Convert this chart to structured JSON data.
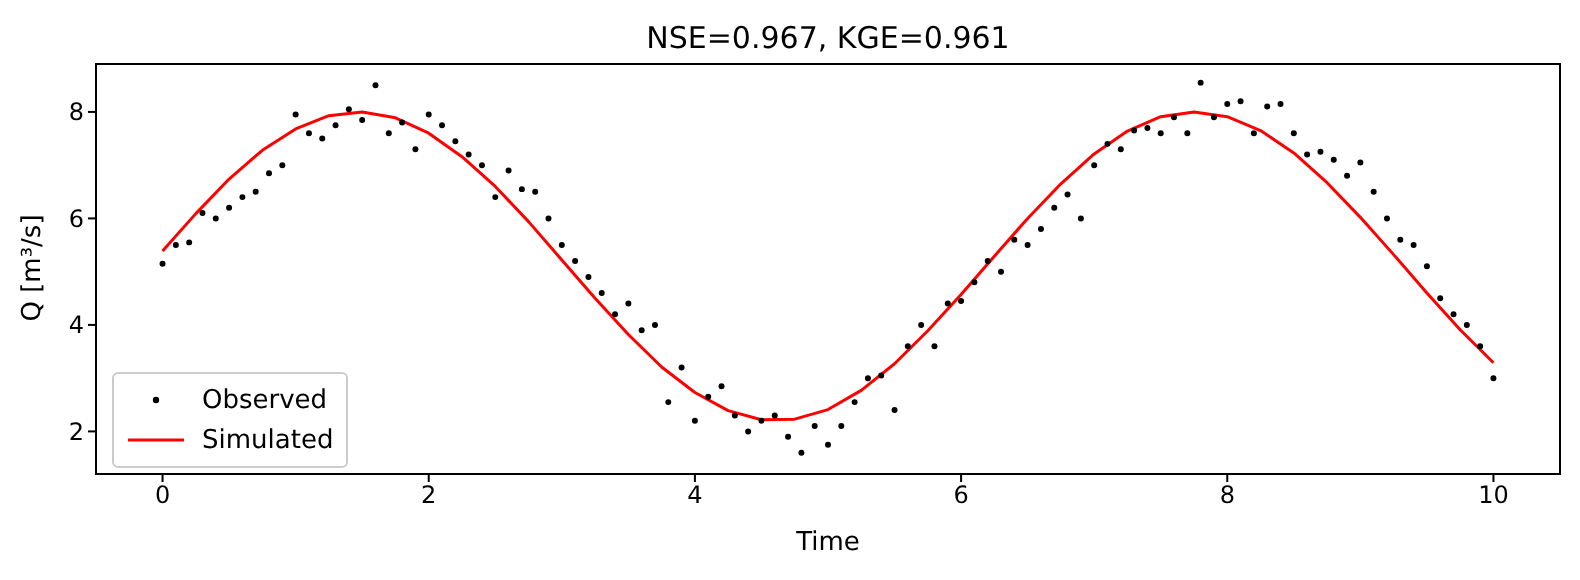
{
  "chart_data": {
    "type": "line",
    "title": "NSE=0.967, KGE=0.961",
    "xlabel": "Time",
    "ylabel": "Q [m³/s]",
    "xlim": [
      -0.5,
      10.5
    ],
    "xticks": [
      0,
      2,
      4,
      6,
      8,
      10
    ],
    "ylim": [
      1.2,
      8.9
    ],
    "yticks": [
      2,
      4,
      6,
      8
    ],
    "grid": false,
    "legend": "bottom left",
    "series": [
      {
        "name": "Observed",
        "type": "scatter",
        "marker": "circle",
        "color": "#000000",
        "x": [
          0,
          0.1,
          0.2,
          0.3,
          0.4,
          0.5,
          0.6,
          0.7,
          0.8,
          0.9,
          1.0,
          1.1,
          1.2,
          1.3,
          1.4,
          1.5,
          1.6,
          1.7,
          1.8,
          1.9,
          2.0,
          2.1,
          2.2,
          2.3,
          2.4,
          2.5,
          2.6,
          2.7,
          2.8,
          2.9,
          3.0,
          3.1,
          3.2,
          3.3,
          3.4,
          3.5,
          3.6,
          3.7,
          3.8,
          3.9,
          4.0,
          4.1,
          4.2,
          4.3,
          4.4,
          4.5,
          4.6,
          4.7,
          4.8,
          4.9,
          5.0,
          5.1,
          5.2,
          5.3,
          5.4,
          5.5,
          5.6,
          5.7,
          5.8,
          5.9,
          6.0,
          6.1,
          6.2,
          6.3,
          6.4,
          6.5,
          6.6,
          6.7,
          6.8,
          6.9,
          7.0,
          7.1,
          7.2,
          7.3,
          7.4,
          7.5,
          7.6,
          7.7,
          7.8,
          7.9,
          8.0,
          8.1,
          8.2,
          8.3,
          8.4,
          8.5,
          8.6,
          8.7,
          8.8,
          8.9,
          9.0,
          9.1,
          9.2,
          9.3,
          9.4,
          9.5,
          9.6,
          9.7,
          9.8,
          9.9,
          10.0
        ],
        "values": [
          5.15,
          5.5,
          5.55,
          6.1,
          6.0,
          6.2,
          6.4,
          6.5,
          6.85,
          7.0,
          7.95,
          7.6,
          7.5,
          7.75,
          8.05,
          7.85,
          8.5,
          7.6,
          7.8,
          7.3,
          7.95,
          7.75,
          7.45,
          7.2,
          7.0,
          6.4,
          6.9,
          6.55,
          6.5,
          6.0,
          5.5,
          5.2,
          4.9,
          4.6,
          4.2,
          4.4,
          3.9,
          4.0,
          2.55,
          3.2,
          2.2,
          2.65,
          2.85,
          2.3,
          2.0,
          2.2,
          2.3,
          1.9,
          1.6,
          2.1,
          1.75,
          2.1,
          2.55,
          3.0,
          3.05,
          2.4,
          3.6,
          4.0,
          3.6,
          4.4,
          4.45,
          4.8,
          5.2,
          5.0,
          5.6,
          5.5,
          5.8,
          6.2,
          6.45,
          6.0,
          7.0,
          7.4,
          7.3,
          7.65,
          7.7,
          7.6,
          7.9,
          7.6,
          8.55,
          7.9,
          8.15,
          8.2,
          7.6,
          8.1,
          8.15,
          7.6,
          7.2,
          7.25,
          7.1,
          6.8,
          7.05,
          6.5,
          6.0,
          5.6,
          5.5,
          5.1,
          4.5,
          4.2,
          4.0,
          3.6,
          3.0
        ]
      },
      {
        "name": "Simulated",
        "marker": "none",
        "line_style": "solid",
        "color": "#ff0000",
        "x": [
          0,
          0.25,
          0.5,
          0.75,
          1.0,
          1.25,
          1.5,
          1.75,
          2.0,
          2.25,
          2.5,
          2.75,
          3.0,
          3.25,
          3.5,
          3.75,
          4.0,
          4.25,
          4.5,
          4.75,
          5.0,
          5.25,
          5.5,
          5.75,
          6.0,
          6.25,
          6.5,
          6.75,
          7.0,
          7.25,
          7.5,
          7.75,
          8.0,
          8.25,
          8.5,
          8.75,
          9.0,
          9.25,
          9.5,
          9.75,
          10.0
        ],
        "values": [
          5.39,
          6.09,
          6.74,
          7.28,
          7.68,
          7.93,
          8.0,
          7.89,
          7.6,
          7.16,
          6.6,
          5.94,
          5.22,
          4.5,
          3.82,
          3.21,
          2.73,
          2.39,
          2.22,
          2.23,
          2.41,
          2.77,
          3.27,
          3.89,
          4.57,
          5.29,
          6.0,
          6.65,
          7.21,
          7.64,
          7.91,
          8.0,
          7.91,
          7.65,
          7.23,
          6.67,
          6.02,
          5.32,
          4.6,
          3.91,
          3.29
        ]
      }
    ]
  }
}
